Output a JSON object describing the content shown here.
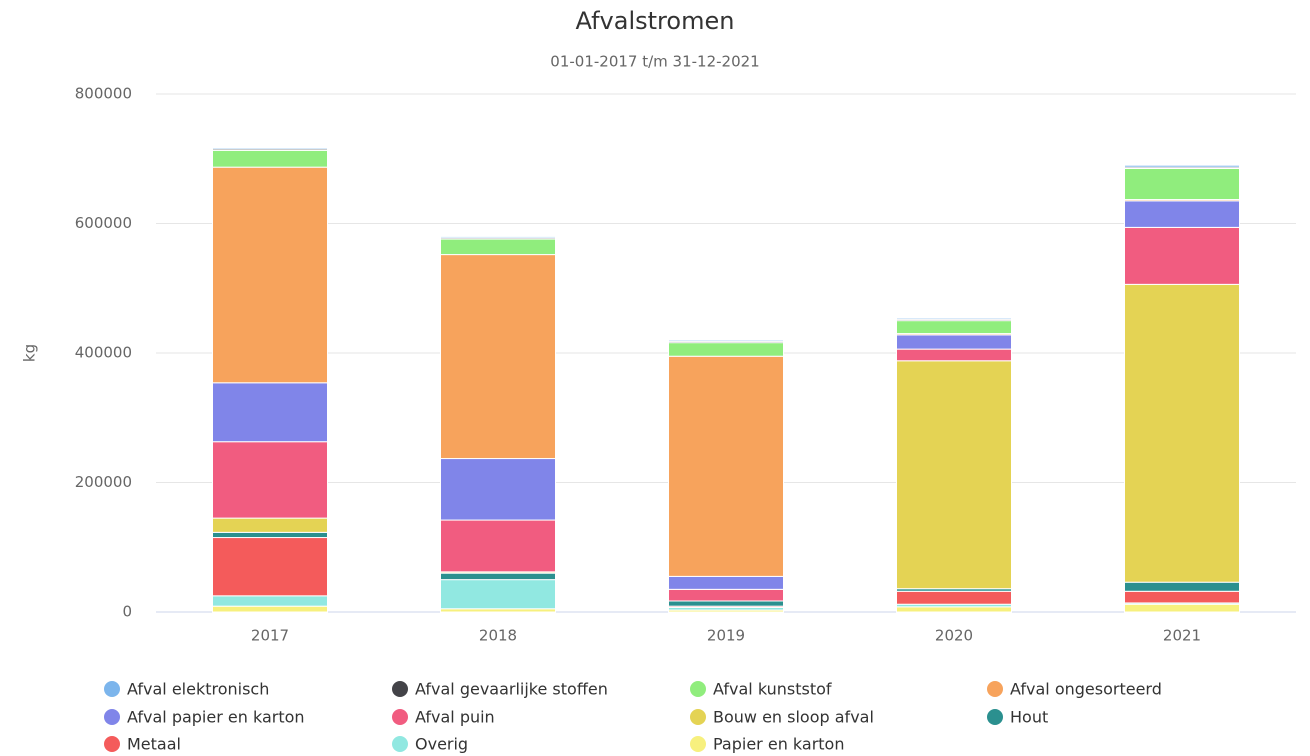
{
  "chart_data": {
    "type": "stacked_bar",
    "title": "Afvalstromen",
    "subtitle": "01-01-2017 t/m 31-12-2021",
    "y_label": "kg",
    "categories": [
      "2017",
      "2018",
      "2019",
      "2020",
      "2021"
    ],
    "ylim": [
      0,
      800000
    ],
    "yticks": [
      0,
      200000,
      400000,
      600000,
      800000
    ],
    "grid": true,
    "series": [
      {
        "name": "Afval elektronisch",
        "color": "#7cb5ec",
        "values": [
          2000,
          2000,
          2000,
          2000,
          3000
        ]
      },
      {
        "name": "Afval gevaarlijke stoffen",
        "color": "#434348",
        "values": [
          2000,
          2000,
          2000,
          2000,
          2000
        ]
      },
      {
        "name": "Afval kunststof",
        "color": "#90ed7d",
        "values": [
          26000,
          24000,
          21000,
          20000,
          48000
        ]
      },
      {
        "name": "Afval ongesorteerd",
        "color": "#f7a35c",
        "values": [
          333000,
          315000,
          340000,
          2000,
          2000
        ]
      },
      {
        "name": "Afval papier en karton",
        "color": "#8085e9",
        "values": [
          91000,
          95000,
          20000,
          22000,
          41000
        ]
      },
      {
        "name": "Afval puin",
        "color": "#f15c80",
        "values": [
          118000,
          80000,
          18000,
          18000,
          88000
        ]
      },
      {
        "name": "Bouw en sloop afval",
        "color": "#e4d354",
        "values": [
          22000,
          2000,
          0,
          352000,
          460000
        ]
      },
      {
        "name": "Hout",
        "color": "#2b908f",
        "values": [
          8000,
          10000,
          8000,
          4000,
          14000
        ]
      },
      {
        "name": "Metaal",
        "color": "#f45b5b",
        "values": [
          90000,
          0,
          2000,
          20000,
          18000
        ]
      },
      {
        "name": "Overig",
        "color": "#91e8e1",
        "values": [
          16000,
          45000,
          4000,
          4000,
          2000
        ]
      },
      {
        "name": "Papier en karton",
        "color": "#f7f07e",
        "values": [
          9000,
          5000,
          3000,
          8000,
          12000
        ]
      }
    ]
  }
}
